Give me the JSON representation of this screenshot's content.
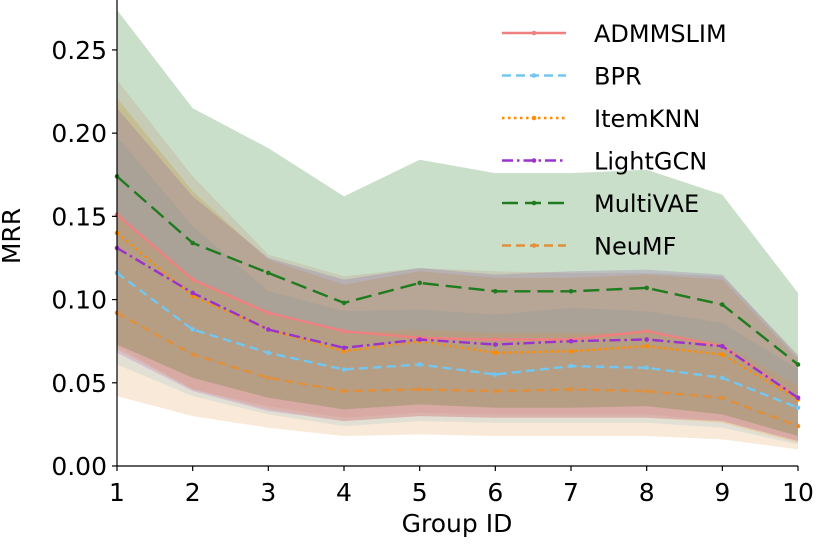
{
  "chart_data": {
    "type": "line",
    "xlabel": "Group ID",
    "ylabel": "MRR",
    "xlim": [
      1,
      10
    ],
    "ylim": [
      0,
      0.28
    ],
    "x": [
      1,
      2,
      3,
      4,
      5,
      6,
      7,
      8,
      9,
      10
    ],
    "xticks": [
      1,
      2,
      3,
      4,
      5,
      6,
      7,
      8,
      9,
      10
    ],
    "yticks": [
      0.0,
      0.05,
      0.1,
      0.15,
      0.2,
      0.25
    ],
    "ytick_labels": [
      "0.00",
      "0.05",
      "0.10",
      "0.15",
      "0.20",
      "0.25"
    ],
    "grid": false,
    "legend_position": "top-right",
    "series": [
      {
        "name": "ADMMSLIM",
        "color": "#f08080",
        "dash": "solid",
        "values": [
          0.151,
          0.112,
          0.092,
          0.081,
          0.077,
          0.076,
          0.076,
          0.081,
          0.072,
          0.041
        ],
        "lower": [
          0.072,
          0.046,
          0.036,
          0.029,
          0.032,
          0.031,
          0.031,
          0.031,
          0.027,
          0.015
        ],
        "upper": [
          0.232,
          0.174,
          0.127,
          0.114,
          0.119,
          0.117,
          0.116,
          0.116,
          0.114,
          0.067
        ]
      },
      {
        "name": "BPR",
        "color": "#73c6f0",
        "dash": "dashed",
        "values": [
          0.116,
          0.082,
          0.068,
          0.058,
          0.061,
          0.055,
          0.06,
          0.059,
          0.053,
          0.035
        ],
        "lower": [
          0.061,
          0.042,
          0.031,
          0.024,
          0.027,
          0.026,
          0.026,
          0.026,
          0.023,
          0.013
        ],
        "upper": [
          0.198,
          0.144,
          0.105,
          0.093,
          0.094,
          0.091,
          0.095,
          0.093,
          0.086,
          0.058
        ]
      },
      {
        "name": "ItemKNN",
        "color": "#ff8c00",
        "dash": "dotted",
        "values": [
          0.14,
          0.102,
          0.082,
          0.069,
          0.075,
          0.068,
          0.069,
          0.072,
          0.067,
          0.04
        ],
        "lower": [
          0.07,
          0.046,
          0.034,
          0.027,
          0.03,
          0.029,
          0.029,
          0.029,
          0.026,
          0.014
        ],
        "upper": [
          0.221,
          0.165,
          0.124,
          0.109,
          0.117,
          0.113,
          0.113,
          0.115,
          0.112,
          0.064
        ]
      },
      {
        "name": "LightGCN",
        "color": "#9a32cd",
        "dash": "dashdot",
        "values": [
          0.131,
          0.104,
          0.082,
          0.071,
          0.076,
          0.073,
          0.075,
          0.076,
          0.072,
          0.041
        ],
        "lower": [
          0.068,
          0.045,
          0.033,
          0.027,
          0.03,
          0.029,
          0.029,
          0.029,
          0.027,
          0.015
        ],
        "upper": [
          0.215,
          0.162,
          0.125,
          0.112,
          0.119,
          0.115,
          0.117,
          0.118,
          0.115,
          0.066
        ]
      },
      {
        "name": "MultiVAE",
        "color": "#1e7b1e",
        "dash": "longdash",
        "values": [
          0.174,
          0.134,
          0.116,
          0.098,
          0.11,
          0.105,
          0.105,
          0.107,
          0.097,
          0.061
        ],
        "lower": [
          0.073,
          0.053,
          0.041,
          0.034,
          0.037,
          0.035,
          0.035,
          0.036,
          0.031,
          0.018
        ],
        "upper": [
          0.274,
          0.215,
          0.191,
          0.162,
          0.184,
          0.176,
          0.176,
          0.178,
          0.163,
          0.104
        ]
      },
      {
        "name": "NeuMF",
        "color": "#e0903c",
        "dash": "dashed",
        "values": [
          0.092,
          0.067,
          0.053,
          0.045,
          0.046,
          0.045,
          0.046,
          0.045,
          0.041,
          0.024
        ],
        "lower": [
          0.042,
          0.03,
          0.023,
          0.018,
          0.019,
          0.018,
          0.018,
          0.018,
          0.016,
          0.01
        ],
        "upper": [
          0.15,
          0.112,
          0.091,
          0.08,
          0.082,
          0.08,
          0.08,
          0.08,
          0.074,
          0.048
        ]
      }
    ]
  }
}
